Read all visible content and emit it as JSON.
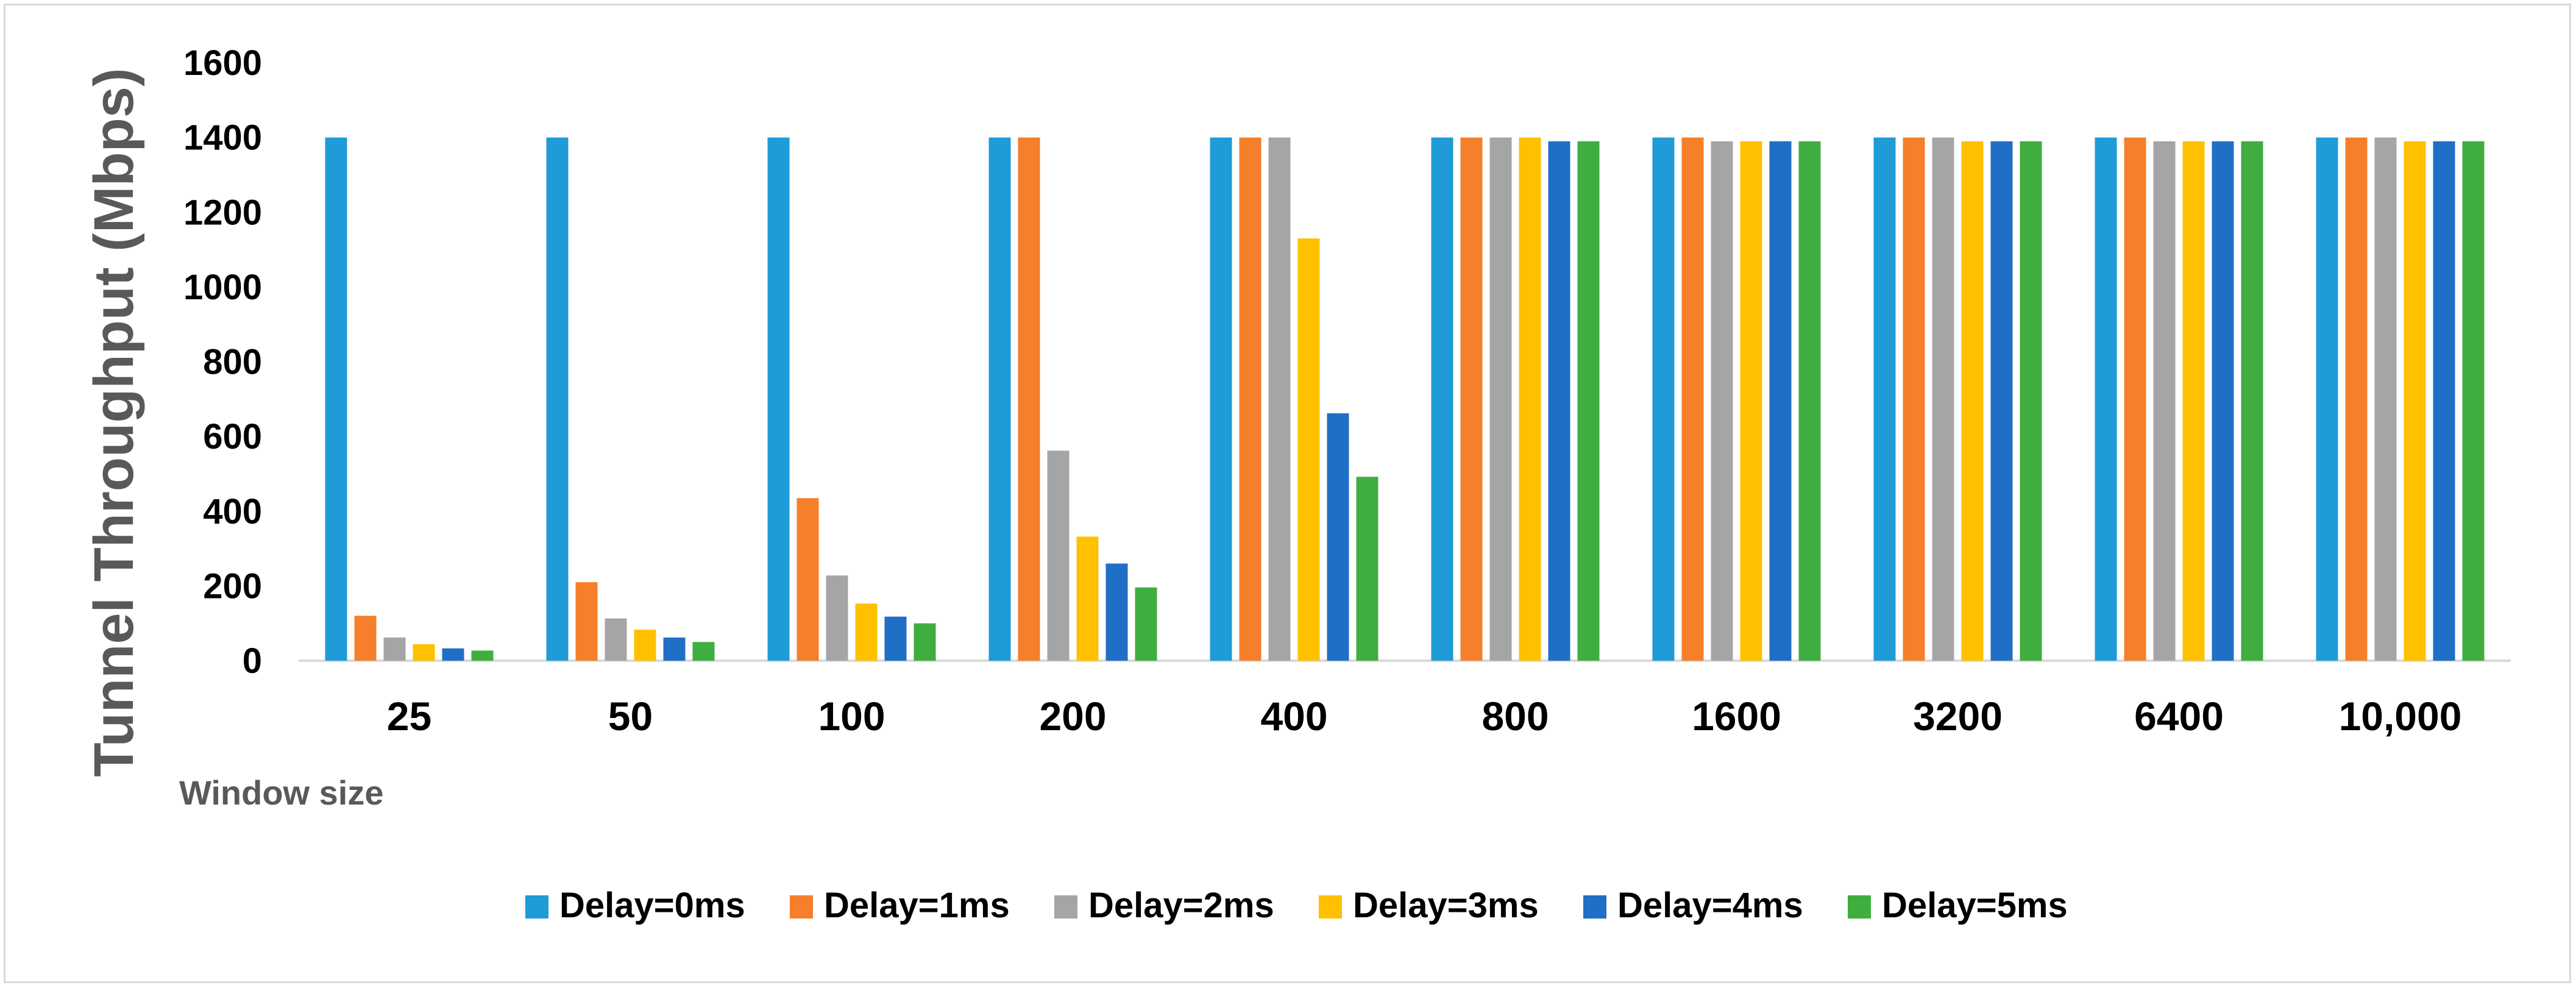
{
  "chart_data": {
    "type": "bar",
    "title": "",
    "ylabel": "Tunnel Throughput (Mbps)",
    "xlabel": "Window size",
    "ylim": [
      0,
      1600
    ],
    "yticks": [
      0,
      200,
      400,
      600,
      800,
      1000,
      1200,
      1400,
      1600
    ],
    "ytick_labels": [
      "0",
      "200",
      "400",
      "600",
      "800",
      "1000",
      "1200",
      "1400",
      "1600"
    ],
    "grid": false,
    "legend_position": "bottom",
    "categories": [
      "25",
      "50",
      "100",
      "200",
      "400",
      "800",
      "1600",
      "3200",
      "6400",
      "10,000"
    ],
    "series": [
      {
        "name": "Delay=0ms",
        "color": "#1f9bd7",
        "values": [
          1400,
          1400,
          1400,
          1400,
          1400,
          1400,
          1400,
          1400,
          1400,
          1400
        ]
      },
      {
        "name": "Delay=1ms",
        "color": "#f57f2a",
        "values": [
          120,
          210,
          435,
          1400,
          1400,
          1400,
          1400,
          1400,
          1400,
          1400
        ]
      },
      {
        "name": "Delay=2ms",
        "color": "#a5a5a5",
        "values": [
          62,
          113,
          228,
          562,
          1400,
          1400,
          1390,
          1400,
          1390,
          1400
        ]
      },
      {
        "name": "Delay=3ms",
        "color": "#ffc000",
        "values": [
          44,
          83,
          153,
          332,
          1130,
          1400,
          1390,
          1390,
          1390,
          1390
        ]
      },
      {
        "name": "Delay=4ms",
        "color": "#1f6fc6",
        "values": [
          33,
          62,
          118,
          260,
          662,
          1390,
          1390,
          1390,
          1390,
          1390
        ]
      },
      {
        "name": "Delay=5ms",
        "color": "#3fae3f",
        "values": [
          27,
          50,
          100,
          196,
          492,
          1390,
          1390,
          1390,
          1390,
          1390
        ]
      }
    ]
  }
}
